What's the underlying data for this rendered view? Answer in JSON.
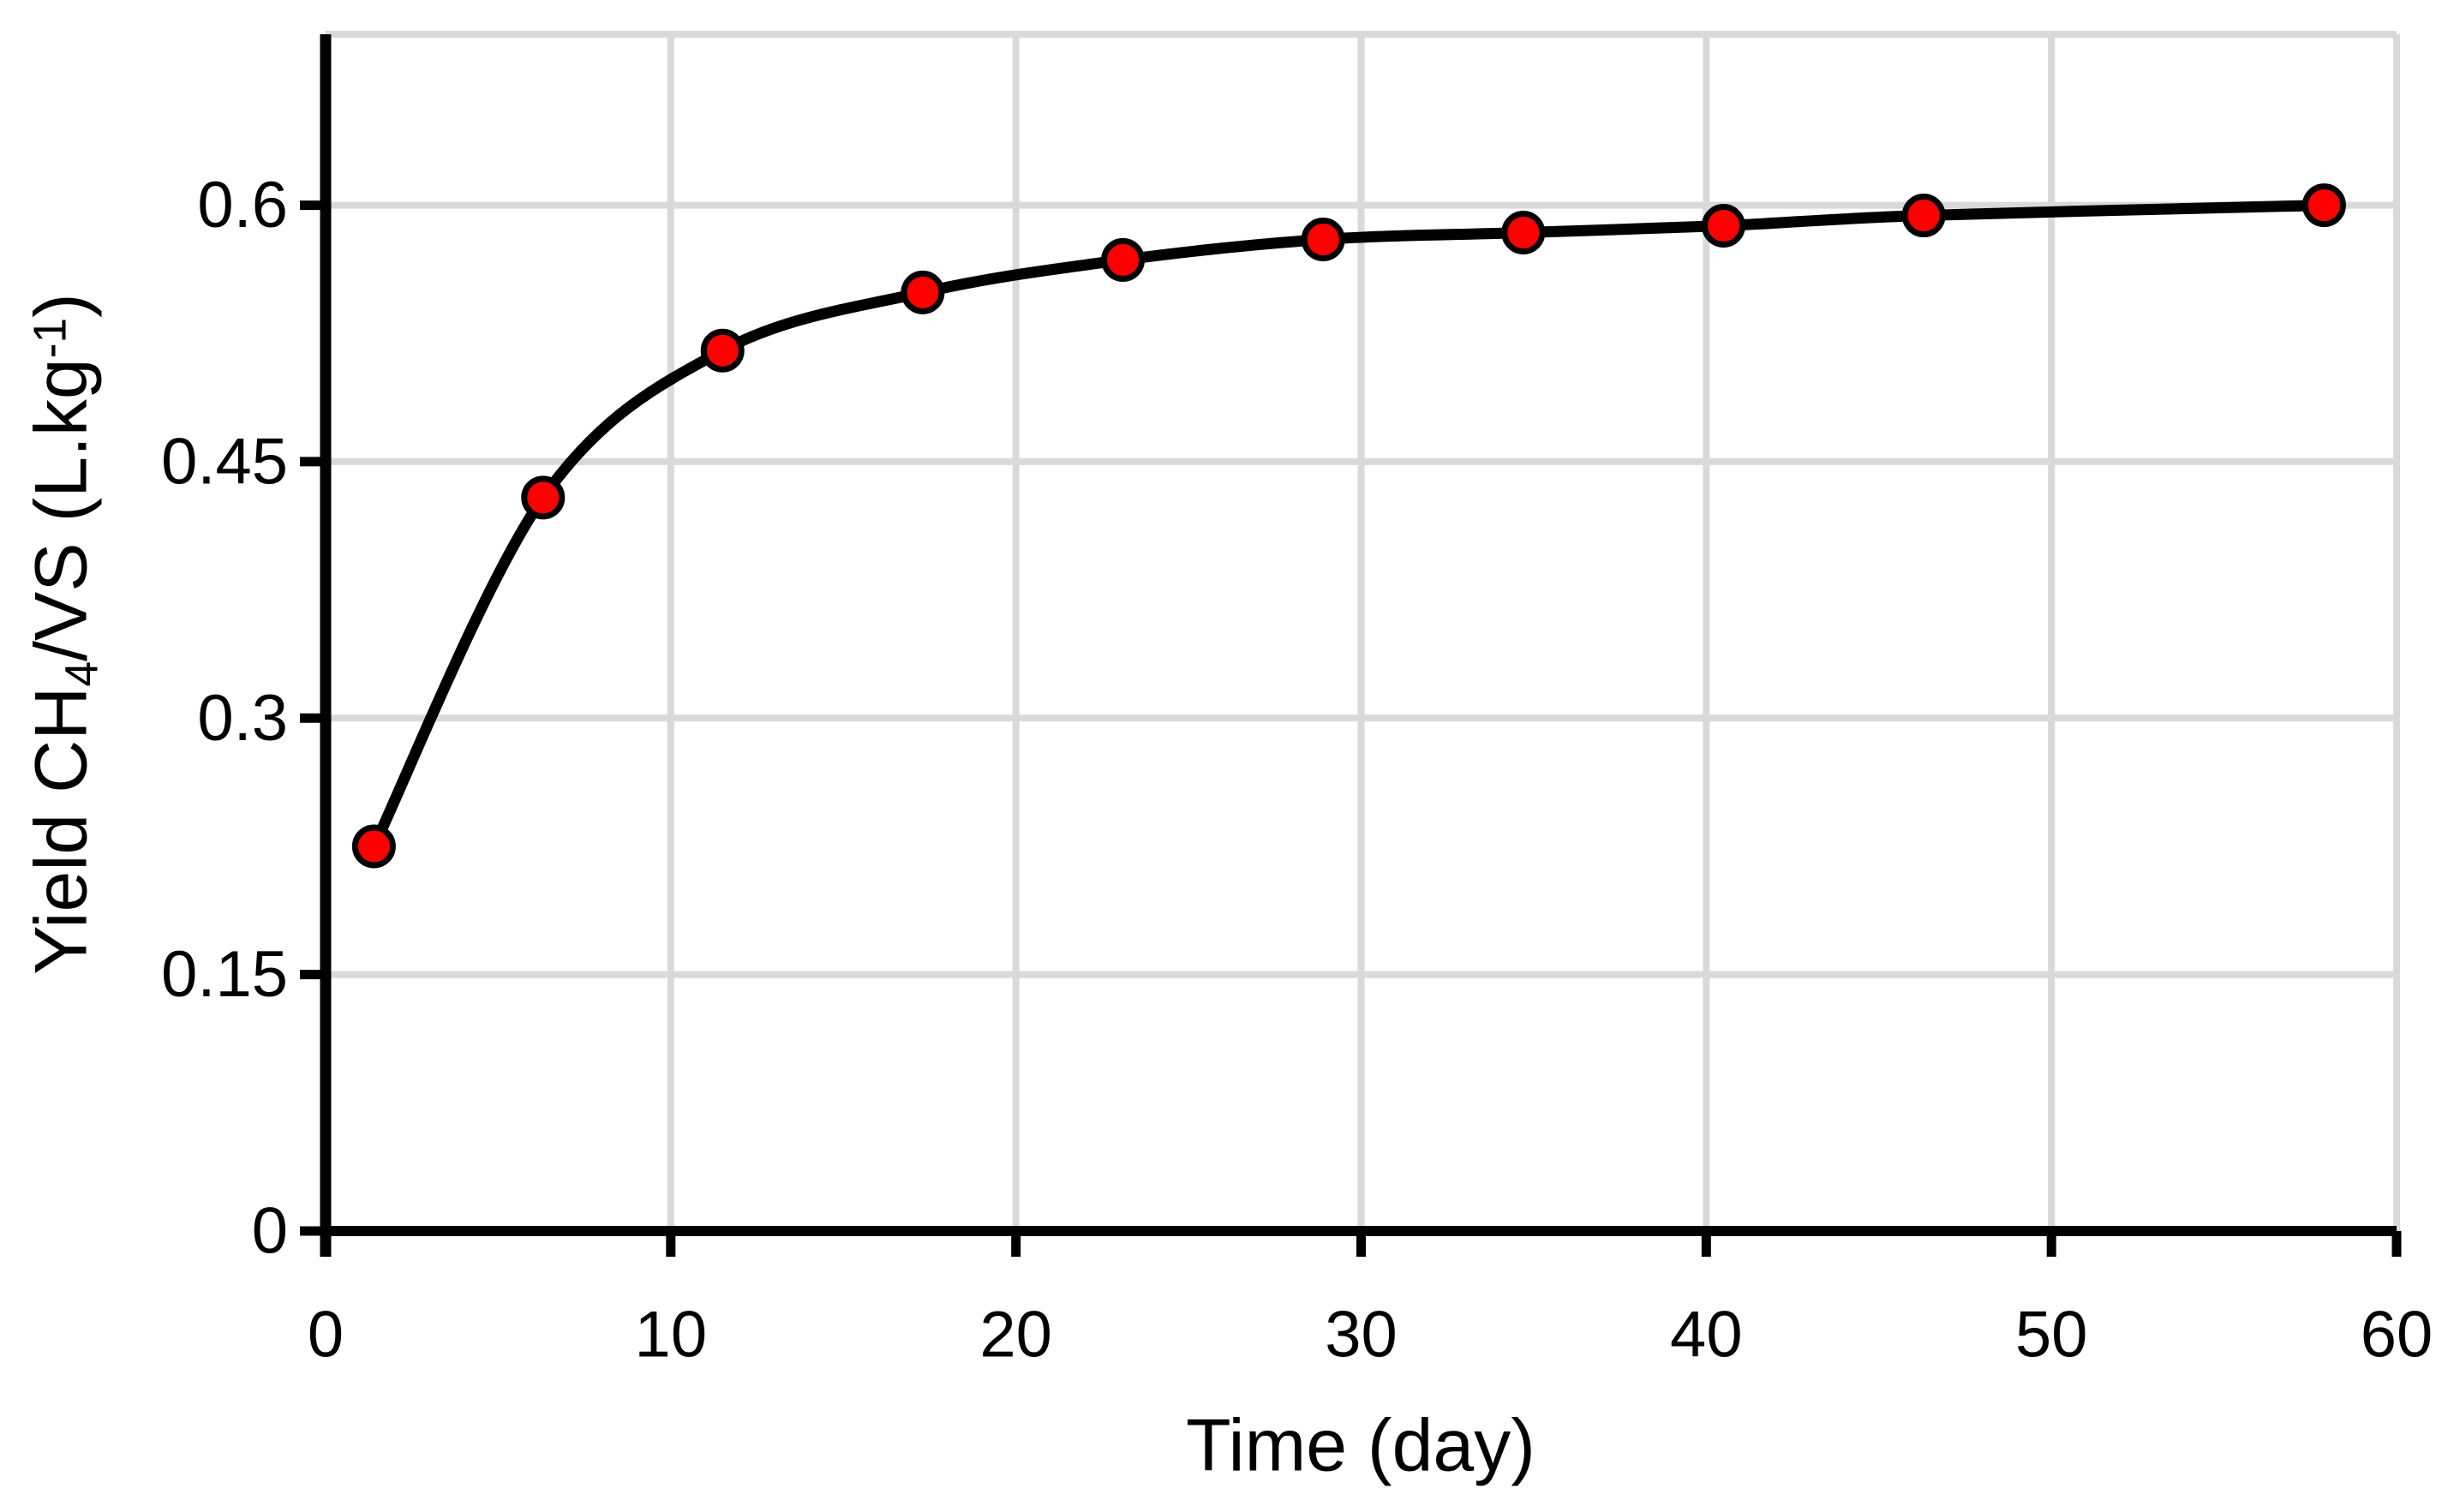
{
  "chart_data": {
    "type": "line",
    "title": "",
    "xlabel": "Time (day)",
    "ylabel": "Yield CH4/VS (L.kg-1)",
    "ylabel_parts": {
      "pre": "Yield CH",
      "sub": "4",
      "mid": "/VS (L.kg",
      "sup": "-1",
      "post": ")"
    },
    "series": [
      {
        "name": "Yield CH4/VS",
        "x": [
          1.4,
          6.3,
          11.5,
          17.3,
          23.1,
          28.9,
          34.7,
          40.5,
          46.3,
          57.9
        ],
        "y": [
          0.225,
          0.429,
          0.515,
          0.549,
          0.568,
          0.58,
          0.584,
          0.588,
          0.594,
          0.6
        ]
      }
    ],
    "xlim": [
      0,
      60
    ],
    "ylim": [
      0,
      0.7
    ],
    "x_ticks": [
      0,
      10,
      20,
      30,
      40,
      50,
      60
    ],
    "x_tick_labels": [
      "0",
      "10",
      "20",
      "30",
      "40",
      "50",
      "60"
    ],
    "y_ticks": [
      0,
      0.15,
      0.3,
      0.45,
      0.6
    ],
    "y_tick_labels": [
      "0",
      "0.15",
      "0.3",
      "0.45",
      "0.6"
    ],
    "grid": true,
    "legend": false,
    "line_smoothed": true,
    "colors": {
      "line": "#000000",
      "marker_fill": "#ff0000",
      "marker_stroke": "#000000",
      "grid": "#d9d9d9",
      "axis": "#000000",
      "text": "#000000",
      "background": "#ffffff"
    }
  }
}
